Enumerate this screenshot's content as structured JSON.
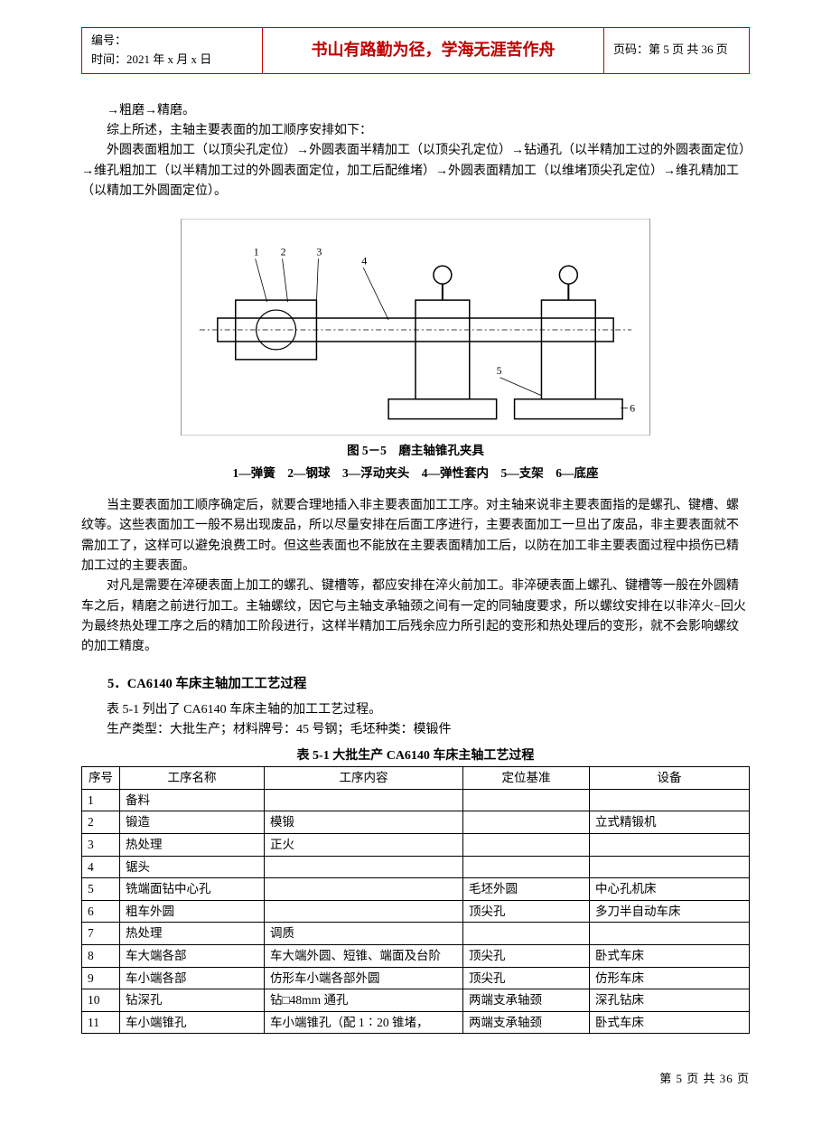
{
  "header": {
    "serial_label": "编号：",
    "time_label": "时间：",
    "time_value": "2021 年 x 月 x 日",
    "motto": "书山有路勤为径，学海无涯苦作舟",
    "page_label": "页码：",
    "page_value": "第 5 页  共 36 页"
  },
  "intro": {
    "line1": "→粗磨→精磨。",
    "line2": "综上所述，主轴主要表面的加工顺序安排如下：",
    "line3": "外圆表面粗加工（以顶尖孔定位）→外圆表面半精加工（以顶尖孔定位）→钻通孔（以半精加工过的外圆表面定位）→维孔粗加工（以半精加工过的外圆表面定位，加工后配维堵）→外圆表面精加工（以维堵顶尖孔定位）→维孔精加工（以精加工外圆面定位）。"
  },
  "figure": {
    "placeholder_label": "机械夹具示意图",
    "caption_line1": "图 5－5　磨主轴锥孔夹具",
    "caption_line2": "1—弹簧　2—钢球　3—浮动夹头　4—弹性套内　5—支架　6—底座"
  },
  "para1": "当主要表面加工顺序确定后，就要合理地插入非主要表面加工工序。对主轴来说非主要表面指的是螺孔、键槽、螺纹等。这些表面加工一般不易出现废品，所以尽量安排在后面工序进行，主要表面加工一旦出了废品，非主要表面就不需加工了，这样可以避免浪费工时。但这些表面也不能放在主要表面精加工后，以防在加工非主要表面过程中损伤已精加工过的主要表面。",
  "para2": "对凡是需要在淬硬表面上加工的螺孔、键槽等，都应安排在淬火前加工。非淬硬表面上螺孔、键槽等一般在外圆精车之后，精磨之前进行加工。主轴螺纹，因它与主轴支承轴颈之间有一定的同轴度要求，所以螺纹安排在以非淬火−回火为最终热处理工序之后的精加工阶段进行，这样半精加工后残余应力所引起的变形和热处理后的变形，就不会影响螺纹的加工精度。",
  "section5": {
    "heading": "5．CA6140 车床主轴加工工艺过程",
    "lead1": "表 5-1 列出了 CA6140 车床主轴的加工工艺过程。",
    "lead2": "生产类型：大批生产；材料牌号：45 号钢；毛坯种类：模锻件",
    "table_title": "表 5-1  大批生产 CA6140 车床主轴工艺过程"
  },
  "table": {
    "headers": [
      "序号",
      "工序名称",
      "工序内容",
      "定位基准",
      "设备"
    ],
    "col_widths": [
      "42px",
      "160px",
      "220px",
      "140px",
      "auto"
    ],
    "rows": [
      {
        "n": "1",
        "name": "备料",
        "content": "",
        "basis": "",
        "equip": ""
      },
      {
        "n": "2",
        "name": "锻造",
        "content": "模锻",
        "basis": "",
        "equip": "立式精锻机"
      },
      {
        "n": "3",
        "name": "热处理",
        "content": "正火",
        "basis": "",
        "equip": ""
      },
      {
        "n": "4",
        "name": "锯头",
        "content": "",
        "basis": "",
        "equip": ""
      },
      {
        "n": "5",
        "name": "铣端面钻中心孔",
        "content": "",
        "basis": "毛坯外圆",
        "equip": "中心孔机床"
      },
      {
        "n": "6",
        "name": "粗车外圆",
        "content": "",
        "basis": "顶尖孔",
        "equip": "多刀半自动车床"
      },
      {
        "n": "7",
        "name": "热处理",
        "content": "调质",
        "basis": "",
        "equip": ""
      },
      {
        "n": "8",
        "name": "车大端各部",
        "content": "车大端外圆、短锥、端面及台阶",
        "basis": "顶尖孔",
        "equip": "卧式车床"
      },
      {
        "n": "9",
        "name": "车小端各部",
        "content": "仿形车小端各部外圆",
        "basis": "顶尖孔",
        "equip": "仿形车床"
      },
      {
        "n": "10",
        "name": "钻深孔",
        "content": "钻□48mm 通孔",
        "basis": "两端支承轴颈",
        "equip": "深孔钻床"
      },
      {
        "n": "11",
        "name": "车小端锥孔",
        "content": "车小端锥孔（配 1∶20 锥堵，",
        "basis": "两端支承轴颈",
        "equip": "卧式车床"
      }
    ]
  },
  "footer": "第  5  页  共  36  页"
}
